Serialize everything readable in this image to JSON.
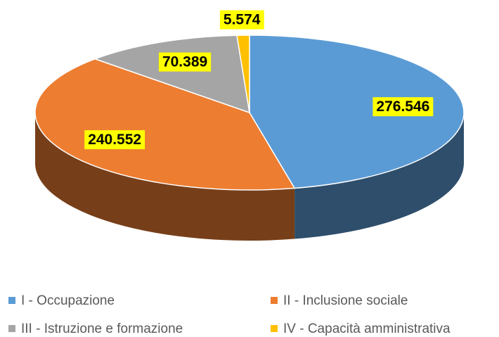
{
  "chart_data": {
    "type": "pie3d",
    "categories": [
      "I - Occupazione",
      "II - Inclusione sociale",
      "III - Istruzione e formazione",
      "IV - Capacità amministrativa"
    ],
    "values": [
      276546,
      240552,
      70389,
      5574
    ],
    "value_labels": [
      "276.546",
      "240.552",
      "70.389",
      "5.574"
    ],
    "colors": [
      "#5b9bd5",
      "#ed7d31",
      "#a5a5a5",
      "#ffc000"
    ],
    "legend": "bottom"
  }
}
